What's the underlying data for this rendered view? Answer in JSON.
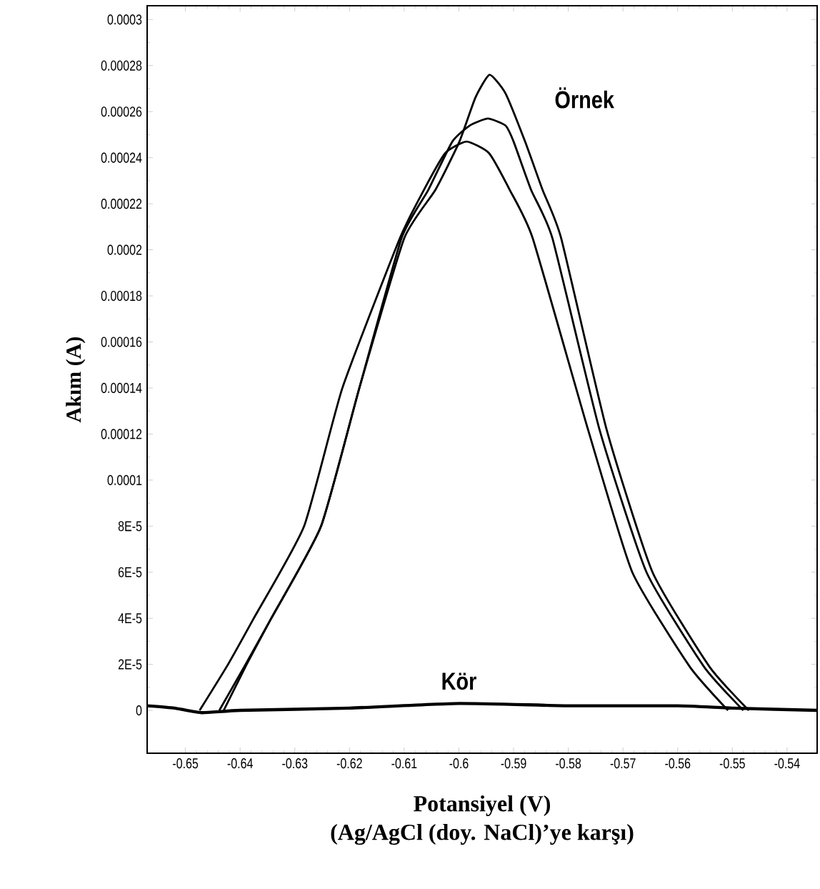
{
  "chart_data": {
    "type": "line",
    "ylabel": "Akım (A)",
    "xlabel": "Potansiyel (V)",
    "marker": "none",
    "xlim": [
      -0.657,
      -0.5345
    ],
    "ylim": [
      -1.86e-05,
      0.000306
    ],
    "xticks": [
      -0.65,
      -0.64,
      -0.63,
      -0.62,
      -0.61,
      -0.6,
      -0.59,
      -0.58,
      -0.57,
      -0.56,
      -0.55,
      -0.54
    ],
    "yticks": [
      0,
      {
        "value": 2e-05,
        "label": "2E-5"
      },
      {
        "value": 4e-05,
        "label": "4E-5"
      },
      {
        "value": 6e-05,
        "label": "6E-5"
      },
      {
        "value": 8e-05,
        "label": "8E-5"
      },
      0.0001,
      0.00012,
      0.00014,
      0.00016,
      0.00018,
      0.0002,
      0.00022,
      0.00024,
      0.00026,
      0.00028,
      0.0003
    ],
    "series": [
      {
        "name": "Örnek",
        "color": "#000000",
        "x": [
          -0.6438,
          -0.639,
          -0.6343,
          -0.6252,
          -0.6182,
          -0.61,
          -0.6043,
          -0.5999,
          -0.597,
          -0.5944,
          -0.5915,
          -0.5879,
          -0.5847,
          -0.5813,
          -0.573,
          -0.5646,
          -0.5542,
          -0.547
        ],
        "values": [
          0,
          2e-05,
          4e-05,
          8e-05,
          0.00014,
          0.000205,
          0.000226,
          0.000247,
          0.000266,
          0.000276,
          0.000268,
          0.000247,
          0.000226,
          0.000205,
          0.000122,
          6e-05,
          1.9e-05,
          0
        ]
      },
      {
        "color": "#000000",
        "x": [
          -0.643,
          -0.6388,
          -0.6343,
          -0.6252,
          -0.6182,
          -0.6105,
          -0.6056,
          -0.6012,
          -0.598,
          -0.5947,
          -0.5915,
          -0.59,
          -0.5868,
          -0.5829,
          -0.5743,
          -0.5657,
          -0.5552,
          -0.548
        ],
        "values": [
          0,
          2e-05,
          4e-05,
          8e-05,
          0.00014,
          0.000205,
          0.000226,
          0.000247,
          0.000254,
          0.000257,
          0.000254,
          0.000247,
          0.000226,
          0.000205,
          0.000122,
          6e-05,
          1.9e-05,
          0
        ]
      },
      {
        "color": "#000000",
        "x": [
          -0.6474,
          -0.6422,
          -0.6375,
          -0.6283,
          -0.6213,
          -0.6108,
          -0.6064,
          -0.6025,
          -0.5986,
          -0.5945,
          -0.5907,
          -0.5865,
          -0.5764,
          -0.5683,
          -0.5578,
          -0.5508
        ],
        "values": [
          0,
          2e-05,
          4e-05,
          8e-05,
          0.00014,
          0.000205,
          0.000226,
          0.000242,
          0.000247,
          0.000242,
          0.000226,
          0.000205,
          0.000122,
          6e-05,
          1.9e-05,
          0
        ]
      },
      {
        "name": "Kör",
        "color": "#000000",
        "x": [
          -0.657,
          -0.652,
          -0.647,
          -0.64,
          -0.62,
          -0.6,
          -0.58,
          -0.56,
          -0.55,
          -0.5345
        ],
        "values": [
          2e-06,
          1e-06,
          -1e-06,
          0,
          1e-06,
          3e-06,
          2e-06,
          2e-06,
          1e-06,
          0
        ]
      }
    ],
    "annotations": [
      "(Ag/AgCl (doy. NaCl)’ye karşı)"
    ]
  }
}
